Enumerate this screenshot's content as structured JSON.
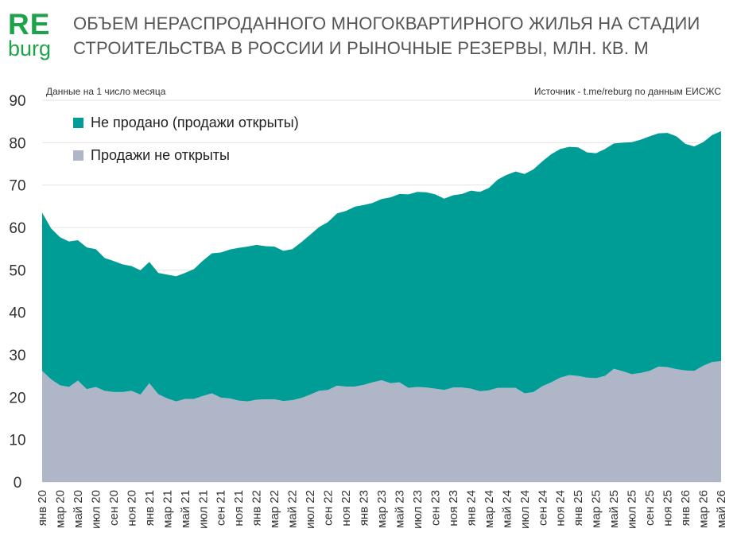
{
  "logo": {
    "top": "RE",
    "bottom": "burg"
  },
  "header": {
    "title": "ОБЪЕМ НЕРАСПРОДАННОГО МНОГОКВАРТИРНОГО ЖИЛЬЯ НА СТАДИИ СТРОИТЕЛЬСТВА В РОССИИ И РЫНОЧНЫЕ РЕЗЕРВЫ, МЛН. КВ. М",
    "note_left": "Данные на 1 число месяца",
    "note_right": "Источник - t.me/reburg по данным ЕИСЖС"
  },
  "chart_data": {
    "type": "area",
    "stacked": true,
    "ylim": [
      0,
      90
    ],
    "yticks": [
      0,
      10,
      20,
      30,
      40,
      50,
      60,
      70,
      80,
      90
    ],
    "grid": true,
    "legend_position": "top-left",
    "x_label_every": 2,
    "x": [
      "янв 20",
      "фев 20",
      "мар 20",
      "апр 20",
      "май 20",
      "июн 20",
      "июл 20",
      "авг 20",
      "сен 20",
      "окт 20",
      "ноя 20",
      "дек 20",
      "янв 21",
      "фев 21",
      "мар 21",
      "апр 21",
      "май 21",
      "июн 21",
      "июл 21",
      "авг 21",
      "сен 21",
      "окт 21",
      "ноя 21",
      "дек 21",
      "янв 22",
      "фев 22",
      "мар 22",
      "апр 22",
      "май 22",
      "июн 22",
      "июл 22",
      "авг 22",
      "сен 22",
      "окт 22",
      "ноя 22",
      "дек 22",
      "янв 23",
      "фев 23",
      "мар 23",
      "апр 23",
      "май 23",
      "июн 23",
      "июл 23",
      "авг 23",
      "сен 23",
      "окт 23",
      "ноя 23",
      "дек 23",
      "янв 24",
      "фев 24",
      "мар 24",
      "апр 24",
      "май 24",
      "июн 24",
      "июл 24",
      "авг 24",
      "сен 24",
      "окт 24",
      "ноя 24",
      "дек 24",
      "янв 25",
      "фев 25",
      "мар 25",
      "апр 25",
      "май 25",
      "июн 25",
      "июл 25",
      "авг 25",
      "сен 25",
      "окт 25",
      "ноя 25",
      "дек 25",
      "янв 26",
      "фев 26",
      "мар 26",
      "апр 26",
      "май 26"
    ],
    "series": [
      {
        "name": "Продажи не открыты",
        "color": "#aeb6c8",
        "values": [
          26.2,
          24.2,
          22.8,
          22.4,
          23.9,
          21.9,
          22.4,
          21.5,
          21.2,
          21.2,
          21.5,
          20.6,
          23.3,
          20.7,
          19.7,
          19.0,
          19.6,
          19.6,
          20.3,
          20.9,
          19.9,
          19.7,
          19.2,
          19.0,
          19.4,
          19.5,
          19.5,
          19.1,
          19.3,
          19.8,
          20.6,
          21.5,
          21.7,
          22.7,
          22.5,
          22.5,
          22.9,
          23.5,
          24.0,
          23.3,
          23.5,
          22.2,
          22.4,
          22.3,
          22.0,
          21.7,
          22.3,
          22.3,
          22.0,
          21.4,
          21.6,
          22.2,
          22.2,
          22.2,
          20.9,
          21.2,
          22.6,
          23.5,
          24.6,
          25.2,
          25.0,
          24.6,
          24.5,
          25.0,
          26.7,
          26.1,
          25.4,
          25.7,
          26.2,
          27.2,
          27.1,
          26.6,
          26.3,
          26.2,
          27.4,
          28.3,
          28.5
        ]
      },
      {
        "name": "Не продано (продажи открыты)",
        "color": "#009c96",
        "values": [
          37.3,
          35.6,
          34.9,
          34.3,
          33.1,
          33.4,
          32.5,
          31.3,
          30.9,
          30.1,
          29.4,
          29.3,
          28.6,
          28.6,
          29.2,
          29.5,
          29.7,
          30.6,
          31.9,
          33.0,
          34.2,
          35.1,
          36.0,
          36.5,
          36.5,
          36.1,
          36.0,
          35.4,
          35.6,
          36.7,
          37.7,
          38.6,
          39.6,
          40.6,
          41.4,
          42.4,
          42.4,
          42.3,
          42.7,
          43.8,
          44.4,
          45.6,
          46.0,
          46.0,
          45.8,
          45.1,
          45.3,
          45.6,
          46.7,
          47.0,
          47.7,
          49.1,
          50.2,
          51.0,
          51.7,
          52.5,
          53.0,
          53.8,
          53.9,
          53.8,
          53.9,
          53.1,
          53.0,
          53.5,
          53.1,
          53.9,
          54.7,
          55.0,
          55.3,
          55.0,
          55.2,
          54.9,
          53.4,
          52.9,
          52.7,
          53.5,
          54.2
        ]
      }
    ]
  }
}
